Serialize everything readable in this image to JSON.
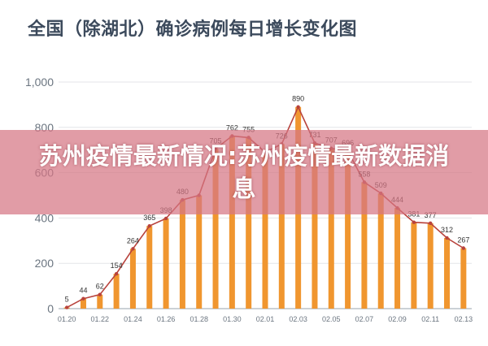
{
  "chart_data": {
    "type": "bar",
    "title": "全国（除湖北）确诊病例每日增长变化图",
    "xlabel": "",
    "ylabel": "",
    "ylim": [
      0,
      1000
    ],
    "yticks": [
      "0",
      "200",
      "400",
      "600",
      "800",
      "1,000"
    ],
    "grid": true,
    "legend": "none",
    "categories": [
      "01.20",
      "01.21",
      "01.22",
      "01.23",
      "01.24",
      "01.25",
      "01.26",
      "01.27",
      "01.28",
      "01.29",
      "01.30",
      "01.31",
      "02.01",
      "02.02",
      "02.03",
      "02.04",
      "02.05",
      "02.06",
      "02.07",
      "02.08",
      "02.09",
      "02.10",
      "02.11",
      "02.12",
      "02.13"
    ],
    "xtick_labels": [
      "01.20",
      "01.22",
      "01.24",
      "01.26",
      "01.28",
      "01.30",
      "02.01",
      "02.03",
      "02.05",
      "02.07",
      "02.09",
      "02.11",
      "02.13"
    ],
    "values": [
      5,
      44,
      62,
      154,
      264,
      365,
      398,
      480,
      500,
      705,
      762,
      755,
      690,
      726,
      890,
      731,
      707,
      696,
      558,
      509,
      444,
      381,
      377,
      312,
      267
    ],
    "data_labels": [
      "5",
      "44",
      "62",
      "154",
      "264",
      "365",
      "398",
      "480",
      "",
      "705",
      "762",
      "755",
      "",
      "726",
      "890",
      "731",
      "707",
      "696",
      "558",
      "509",
      "444",
      "381",
      "377",
      "312",
      "267"
    ],
    "bar_color": "#f0962f",
    "line_color": "#b8423c"
  },
  "overlay": {
    "banner_text": "苏州疫情最新情况:苏州疫情最新数据消息",
    "banner_color": "#d67684"
  }
}
